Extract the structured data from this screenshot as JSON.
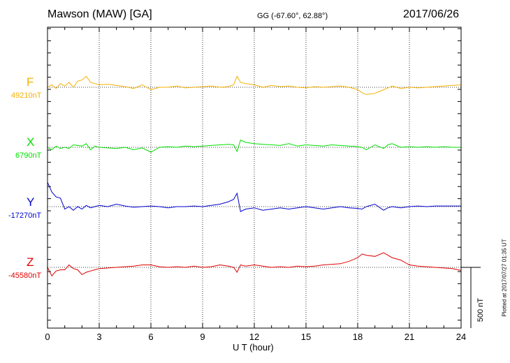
{
  "header": {
    "station": "Mawson (MAW)  [GA]",
    "coords": "GG (-67.60°,  62.88°)",
    "date": "2017/06/26"
  },
  "footer": {
    "plotted": "Plotted at 2017/07/27 01:35 UT",
    "scale": "500 nT"
  },
  "colors": {
    "F": "#f5b000",
    "X": "#00e000",
    "Y": "#0000d0",
    "Z": "#e00000"
  },
  "chart_data": {
    "type": "line",
    "title": "Mawson (MAW)  [GA]",
    "xlabel": "U T (hour)",
    "ylabel": "",
    "xlim": [
      0,
      24
    ],
    "x_ticks": [
      "0",
      "3",
      "6",
      "9",
      "12",
      "15",
      "18",
      "21",
      "24"
    ],
    "scale_bar_nT": 500,
    "grid": true,
    "x": [
      0,
      0.25,
      0.5,
      0.75,
      1,
      1.25,
      1.5,
      1.75,
      2,
      2.25,
      2.5,
      2.75,
      3,
      3.5,
      4,
      4.5,
      5,
      5.5,
      6,
      6.5,
      7,
      7.5,
      8,
      8.5,
      9,
      9.5,
      10,
      10.5,
      10.8,
      11,
      11.2,
      11.5,
      12,
      12.5,
      13,
      13.5,
      14,
      14.5,
      15,
      15.5,
      16,
      16.5,
      17,
      17.5,
      18,
      18.25,
      18.5,
      19,
      19.5,
      19.75,
      20,
      20.5,
      21,
      21.5,
      22,
      22.5,
      23,
      23.5,
      24
    ],
    "series": [
      {
        "name": "F",
        "base_label": "49210nT",
        "baseline_nT": 49210,
        "values": [
          0,
          20,
          -10,
          30,
          10,
          40,
          0,
          50,
          60,
          90,
          40,
          30,
          20,
          25,
          15,
          5,
          -10,
          20,
          -20,
          0,
          0,
          10,
          -5,
          0,
          5,
          10,
          0,
          5,
          20,
          90,
          40,
          30,
          20,
          0,
          15,
          5,
          10,
          0,
          -5,
          5,
          0,
          5,
          10,
          0,
          -20,
          -45,
          -60,
          -50,
          -20,
          -5,
          10,
          -10,
          0,
          -5,
          0,
          5,
          10,
          15,
          20
        ]
      },
      {
        "name": "X",
        "base_label": "6790nT",
        "baseline_nT": 6790,
        "values": [
          0,
          -20,
          10,
          -10,
          0,
          -10,
          20,
          15,
          10,
          30,
          -20,
          10,
          0,
          -5,
          -10,
          0,
          -20,
          -5,
          -40,
          0,
          5,
          0,
          10,
          5,
          10,
          15,
          20,
          25,
          20,
          -35,
          60,
          40,
          30,
          25,
          20,
          15,
          30,
          10,
          20,
          15,
          10,
          20,
          15,
          10,
          5,
          0,
          -20,
          20,
          -10,
          20,
          30,
          0,
          5,
          0,
          5,
          0,
          5,
          0,
          0
        ]
      },
      {
        "name": "Y",
        "base_label": "-17270nT",
        "baseline_nT": -17270,
        "values": [
          200,
          120,
          80,
          70,
          -20,
          0,
          -30,
          0,
          -20,
          10,
          -10,
          0,
          10,
          0,
          20,
          5,
          -5,
          0,
          5,
          0,
          -10,
          0,
          0,
          5,
          0,
          10,
          20,
          40,
          60,
          110,
          -40,
          -20,
          -10,
          -30,
          -20,
          -10,
          -20,
          -10,
          0,
          -10,
          -20,
          -10,
          0,
          -10,
          -15,
          -20,
          0,
          20,
          -30,
          -10,
          0,
          -10,
          0,
          5,
          0,
          5,
          5,
          5,
          5
        ]
      },
      {
        "name": "Z",
        "base_label": "-45580nT",
        "baseline_nT": -45580,
        "values": [
          0,
          -70,
          -30,
          -20,
          -20,
          20,
          -10,
          -20,
          -60,
          -40,
          -30,
          -20,
          -10,
          -5,
          0,
          5,
          10,
          20,
          20,
          5,
          0,
          5,
          0,
          10,
          0,
          5,
          20,
          10,
          0,
          -40,
          20,
          10,
          20,
          10,
          0,
          5,
          0,
          10,
          5,
          10,
          20,
          25,
          30,
          50,
          80,
          110,
          100,
          90,
          120,
          100,
          80,
          60,
          20,
          10,
          5,
          0,
          -5,
          -10,
          -25
        ]
      }
    ]
  }
}
